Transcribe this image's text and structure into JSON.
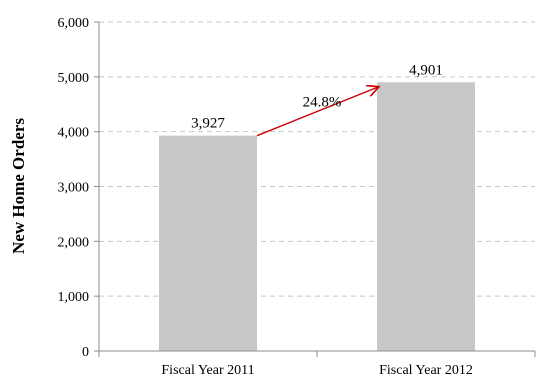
{
  "chart_data": {
    "type": "bar",
    "title": "",
    "xlabel": "",
    "ylabel": "New Home Orders",
    "categories": [
      "Fiscal Year 2011",
      "Fiscal Year 2012"
    ],
    "values": [
      3927,
      4901
    ],
    "data_labels": [
      "3,927",
      "4,901"
    ],
    "ylim": [
      0,
      6000
    ],
    "y_ticks": [
      0,
      1000,
      2000,
      3000,
      4000,
      5000,
      6000
    ],
    "y_tick_labels": [
      "0",
      "1,000",
      "2,000",
      "3,000",
      "4,000",
      "5,000",
      "6,000"
    ],
    "grid": true,
    "legend": "none",
    "annotation": {
      "text": "24.8%",
      "from_category": "Fiscal Year 2011",
      "to_category": "Fiscal Year 2012"
    },
    "colors": {
      "bar": "#c8c8c8",
      "gridline": "#c8c8c8",
      "axis": "#8c8c8c",
      "arrow": "#cc0000"
    }
  }
}
